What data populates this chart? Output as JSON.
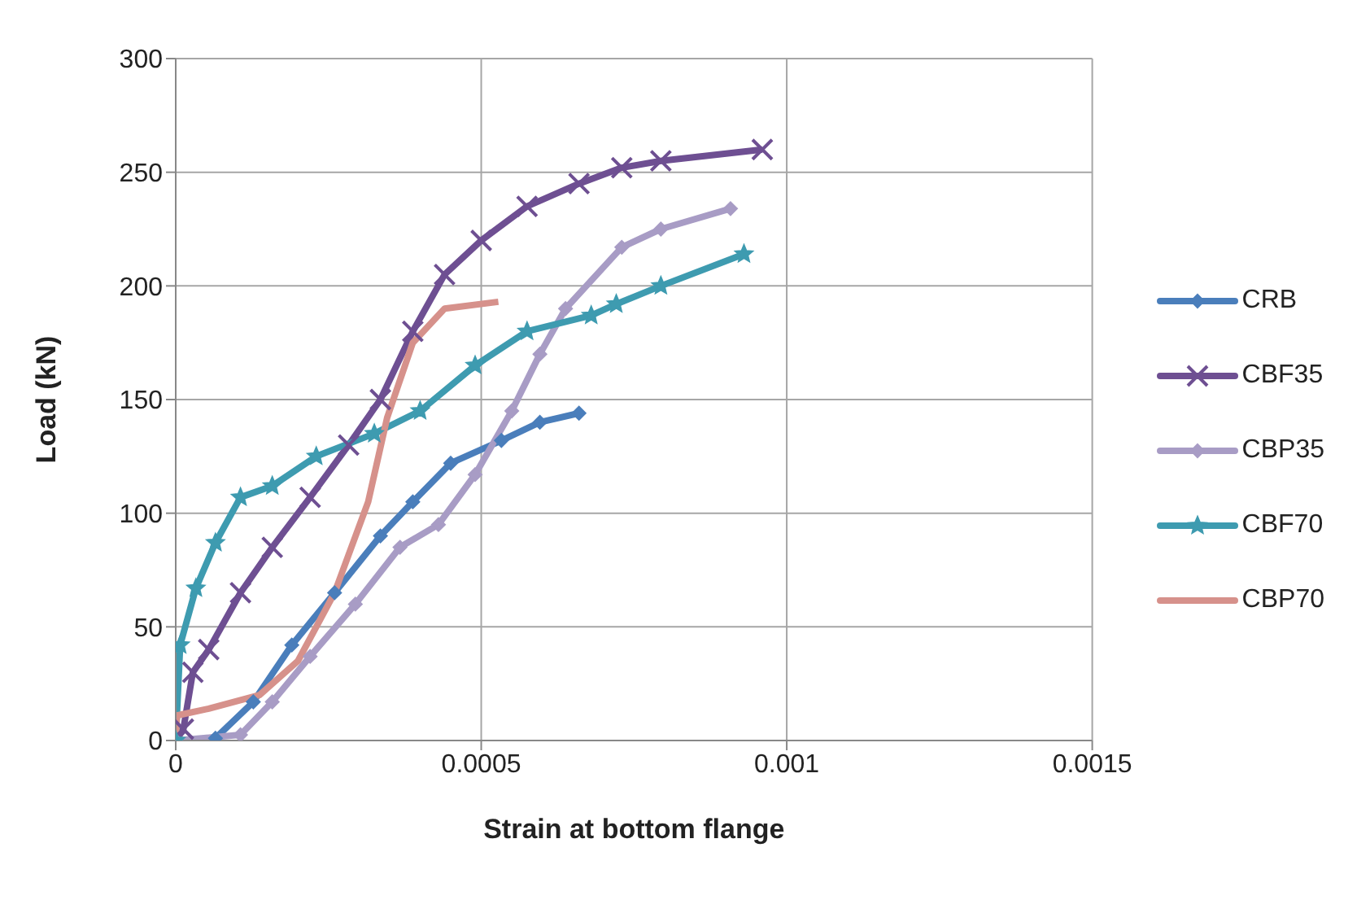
{
  "chart_data": {
    "type": "line",
    "xlabel": "Strain at bottom flange",
    "ylabel": "Load (kN)",
    "xlim": [
      0,
      0.0015
    ],
    "xticks": [
      0,
      0.0005,
      0.001,
      0.0015
    ],
    "ylim": [
      0,
      300
    ],
    "yticks": [
      0,
      50,
      100,
      150,
      200,
      250,
      300
    ],
    "grid": true,
    "legend": "right",
    "series": [
      {
        "name": "CRB",
        "color": "#4a7ebb",
        "marker": "diamond",
        "x": [
          0,
          6.5e-05,
          0.000127,
          0.00019,
          0.00026,
          0.000335,
          0.000388,
          0.00045,
          0.000533,
          0.000596,
          0.00066
        ],
        "values": [
          0,
          1,
          17,
          42,
          65,
          90,
          105,
          122,
          132,
          140,
          144
        ]
      },
      {
        "name": "CBF35",
        "color": "#6e4f92",
        "marker": "cross",
        "x": [
          0,
          1.25e-05,
          2.8e-05,
          5.4e-05,
          0.000106,
          0.000158,
          0.00022,
          0.000283,
          0.000335,
          0.000388,
          0.00044,
          0.0005,
          0.000575,
          0.00066,
          0.00073,
          0.000794,
          0.00096
        ],
        "values": [
          0,
          5,
          30,
          40,
          65,
          85,
          107,
          130,
          150,
          180,
          205,
          220,
          235,
          245,
          252,
          255,
          260
        ]
      },
      {
        "name": "CBP35",
        "color": "#a89cc5",
        "marker": "diamond",
        "x": [
          0,
          0.000106,
          0.000158,
          0.00022,
          0.000294,
          0.000367,
          0.00043,
          0.00049,
          0.00055,
          0.000596,
          0.000638,
          0.00073,
          0.000794,
          0.000908
        ],
        "values": [
          0,
          2.5,
          17,
          37,
          60,
          85,
          95,
          117,
          145,
          170,
          190,
          217,
          225,
          234
        ]
      },
      {
        "name": "CBF70",
        "color": "#3e9bb0",
        "marker": "star",
        "x": [
          0,
          7.3e-06,
          3.3e-05,
          6.5e-05,
          0.000106,
          0.000158,
          0.00023,
          0.000325,
          0.0004,
          0.00049,
          0.000575,
          0.00068,
          0.000721,
          0.000794,
          0.00093
        ],
        "values": [
          0,
          42,
          67,
          87,
          107,
          112,
          125,
          135,
          145,
          165,
          180,
          187,
          192,
          200,
          214
        ]
      },
      {
        "name": "CBP70",
        "color": "#d6918b",
        "marker": "none",
        "x": [
          0,
          2e-06,
          5.4e-05,
          0.000137,
          0.0002,
          0.00026,
          0.000315,
          0.000346,
          0.000388,
          0.00044,
          0.000528
        ],
        "values": [
          0,
          11,
          14,
          20,
          35,
          65,
          105,
          142,
          175,
          190,
          193
        ]
      }
    ]
  }
}
